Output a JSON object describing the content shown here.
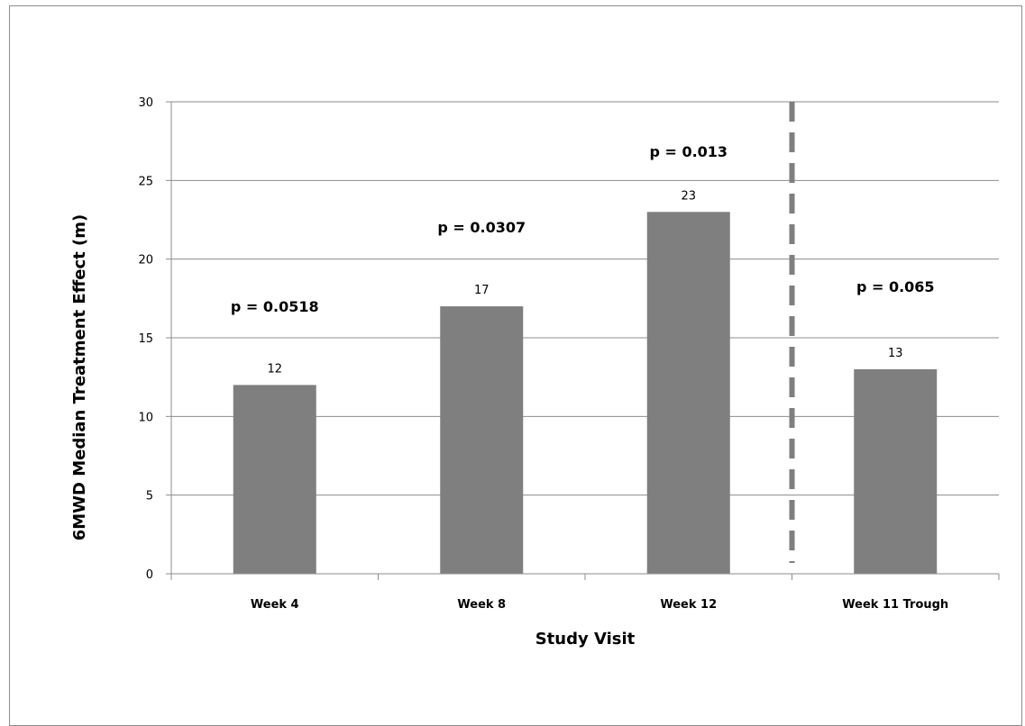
{
  "chart_data": {
    "type": "bar",
    "categories": [
      "Week 4",
      "Week 8",
      "Week 12",
      "Week 11 Trough"
    ],
    "values": [
      12,
      17,
      23,
      13
    ],
    "data_labels": [
      "12",
      "17",
      "23",
      "13"
    ],
    "annotations": [
      "p = 0.0518",
      "p = 0.0307",
      "p = 0.013",
      "p = 0.065"
    ],
    "title": "",
    "xlabel": "Study Visit",
    "ylabel": "6MWD Median Treatment Effect (m)",
    "ylim": [
      0,
      30
    ],
    "yticks": [
      "0",
      "5",
      "10",
      "15",
      "20",
      "25",
      "30"
    ],
    "grid": true,
    "legend": "none",
    "separator": "dashed vertical line between Week 12 and Week 11 Trough",
    "colors": {
      "bar": "#7f7f7f",
      "grid": "#8c8c8c",
      "separator": "#7f7f7f"
    }
  }
}
